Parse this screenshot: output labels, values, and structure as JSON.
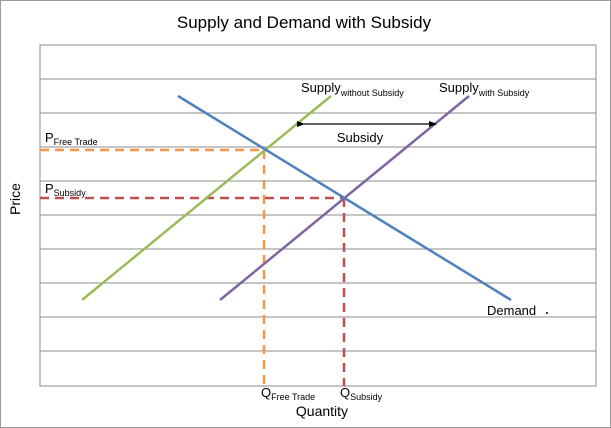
{
  "chart_data": {
    "type": "diagram",
    "title": "Supply and Demand with Subsidy",
    "xlabel": "Quantity",
    "ylabel": "Price",
    "grid": true,
    "curves": {
      "supply_without": {
        "base": "Supply",
        "sub": "without Subsidy",
        "color": "#9bbb59"
      },
      "supply_with": {
        "base": "Supply",
        "sub": "with Subsidy",
        "color": "#8064a2"
      },
      "demand": {
        "label": "Demand",
        "color": "#4f81bd"
      }
    },
    "price_levels": {
      "free_trade": {
        "base": "P",
        "sub": "Free Trade",
        "color": "#f79646"
      },
      "subsidy": {
        "base": "P",
        "sub": "Subsidy",
        "color": "#c0504d"
      }
    },
    "quantity_levels": {
      "free_trade": {
        "base": "Q",
        "sub": "Free Trade",
        "color": "#f79646"
      },
      "subsidy": {
        "base": "Q",
        "sub": "Subsidy",
        "color": "#c0504d"
      }
    },
    "annotations": {
      "subsidy_arrow": "Subsidy"
    }
  }
}
